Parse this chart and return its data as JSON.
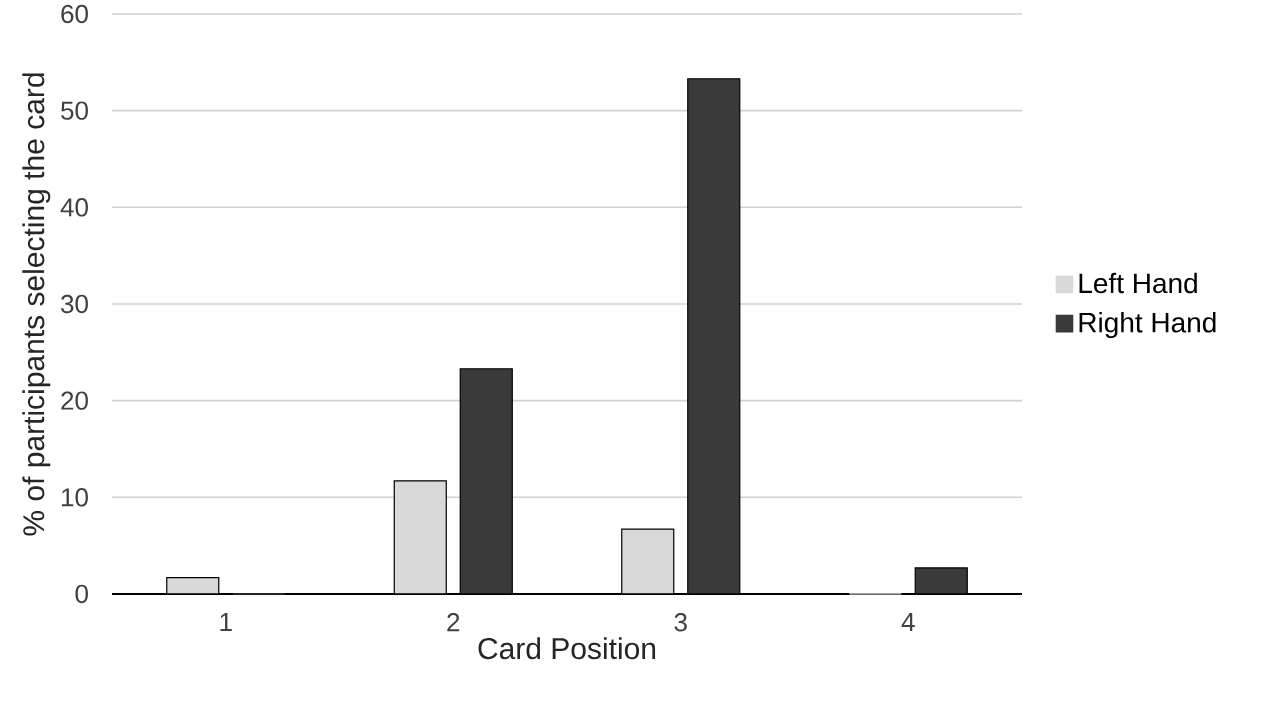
{
  "chart_data": {
    "type": "bar",
    "xlabel": "Card Position",
    "ylabel": "% of participants selecting the card",
    "categories": [
      "1",
      "2",
      "3",
      "4"
    ],
    "series": [
      {
        "name": "Left Hand",
        "color": "#d9d9d9",
        "values": [
          1.7,
          11.7,
          6.7,
          0
        ]
      },
      {
        "name": "Right Hand",
        "color": "#3a3a3a",
        "values": [
          0,
          23.3,
          53.3,
          2.7
        ]
      }
    ],
    "ylim": [
      0,
      60
    ],
    "yticks": [
      0,
      10,
      20,
      30,
      40,
      50,
      60
    ],
    "grid": "y",
    "legend": "right"
  }
}
